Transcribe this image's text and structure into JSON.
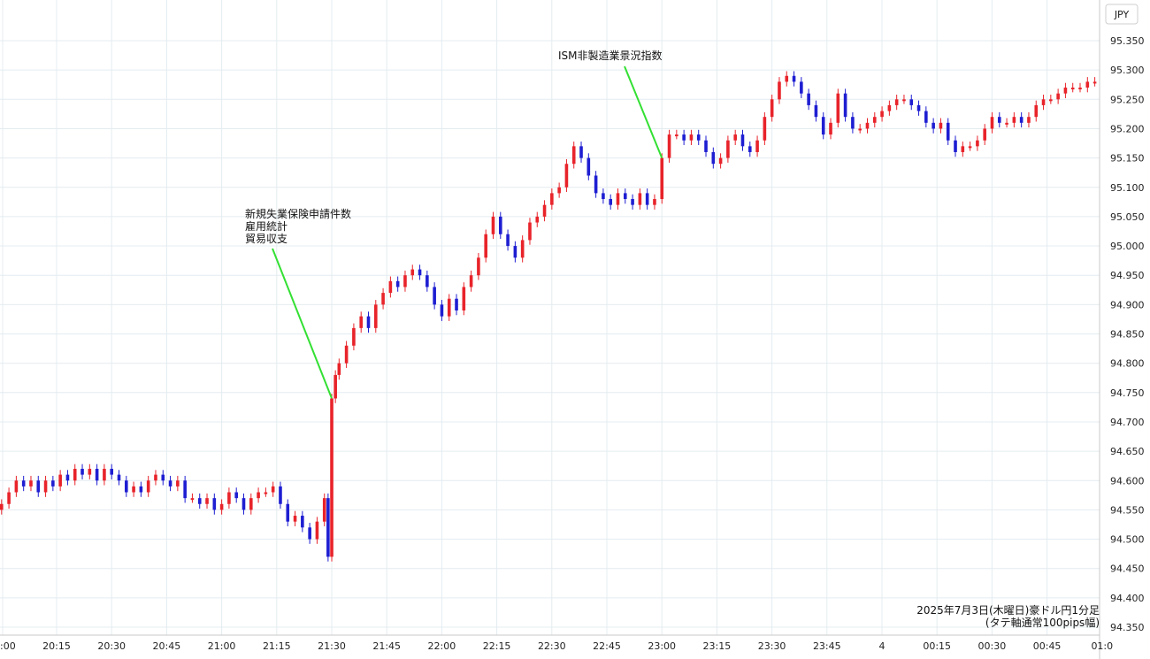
{
  "chart_data": {
    "type": "candlestick",
    "unit_label": "JPY",
    "ylim": [
      94.34,
      95.39
    ],
    "y_ticks": [
      94.35,
      94.4,
      94.45,
      94.5,
      94.55,
      94.6,
      94.65,
      94.7,
      94.75,
      94.8,
      94.85,
      94.9,
      94.95,
      95.0,
      95.05,
      95.1,
      95.15,
      95.2,
      95.25,
      95.3,
      95.35
    ],
    "x_tick_labels": [
      "20:15",
      "20:30",
      "20:45",
      "21:00",
      "21:15",
      "21:30",
      "21:45",
      "22:00",
      "22:15",
      "22:30",
      "22:45",
      "23:00",
      "23:15",
      "23:30",
      "23:45",
      "4",
      "00:15",
      "00:30",
      "00:45",
      "01:0"
    ],
    "left_edge_tick_label": ":00",
    "annotations": [
      {
        "lines": [
          "新規失業保険申請件数",
          "雇用統計",
          "貿易収支"
        ],
        "time": "21:30",
        "price": 94.74
      },
      {
        "lines": [
          "ISM非製造業景況指数"
        ],
        "time": "23:00",
        "price": 95.15
      }
    ],
    "caption": [
      "2025年7月3日(木曜日)豪ドル円1分足",
      "(タテ軸通常100pips幅)"
    ],
    "colors": {
      "up": "#e8232a",
      "down": "#1e1ed2",
      "annotation_line": "#33e033",
      "grid": "#e4ecf0",
      "axis": "#c8c8c8"
    },
    "series": [
      {
        "time": "20:00",
        "close": 94.56
      },
      {
        "time": "20:02",
        "close": 94.58
      },
      {
        "time": "20:04",
        "close": 94.6
      },
      {
        "time": "20:06",
        "close": 94.59
      },
      {
        "time": "20:08",
        "close": 94.6
      },
      {
        "time": "20:10",
        "close": 94.58
      },
      {
        "time": "20:12",
        "close": 94.6
      },
      {
        "time": "20:14",
        "close": 94.59
      },
      {
        "time": "20:16",
        "close": 94.61
      },
      {
        "time": "20:18",
        "close": 94.6
      },
      {
        "time": "20:20",
        "close": 94.62
      },
      {
        "time": "20:22",
        "close": 94.61
      },
      {
        "time": "20:24",
        "close": 94.62
      },
      {
        "time": "20:26",
        "close": 94.6
      },
      {
        "time": "20:28",
        "close": 94.62
      },
      {
        "time": "20:30",
        "close": 94.61
      },
      {
        "time": "20:32",
        "close": 94.6
      },
      {
        "time": "20:34",
        "close": 94.58
      },
      {
        "time": "20:36",
        "close": 94.59
      },
      {
        "time": "20:38",
        "close": 94.58
      },
      {
        "time": "20:40",
        "close": 94.6
      },
      {
        "time": "20:42",
        "close": 94.61
      },
      {
        "time": "20:44",
        "close": 94.6
      },
      {
        "time": "20:46",
        "close": 94.59
      },
      {
        "time": "20:48",
        "close": 94.6
      },
      {
        "time": "20:50",
        "close": 94.57
      },
      {
        "time": "20:52",
        "close": 94.57
      },
      {
        "time": "20:54",
        "close": 94.56
      },
      {
        "time": "20:56",
        "close": 94.57
      },
      {
        "time": "20:58",
        "close": 94.55
      },
      {
        "time": "21:00",
        "close": 94.56
      },
      {
        "time": "21:02",
        "close": 94.58
      },
      {
        "time": "21:04",
        "close": 94.57
      },
      {
        "time": "21:06",
        "close": 94.55
      },
      {
        "time": "21:08",
        "close": 94.57
      },
      {
        "time": "21:10",
        "close": 94.58
      },
      {
        "time": "21:12",
        "close": 94.58
      },
      {
        "time": "21:14",
        "close": 94.59
      },
      {
        "time": "21:16",
        "close": 94.56
      },
      {
        "time": "21:18",
        "close": 94.53
      },
      {
        "time": "21:20",
        "close": 94.54
      },
      {
        "time": "21:22",
        "close": 94.52
      },
      {
        "time": "21:24",
        "close": 94.5
      },
      {
        "time": "21:26",
        "close": 94.53
      },
      {
        "time": "21:28",
        "close": 94.57
      },
      {
        "time": "21:29",
        "close": 94.47
      },
      {
        "time": "21:30",
        "close": 94.74
      },
      {
        "time": "21:31",
        "close": 94.78
      },
      {
        "time": "21:32",
        "close": 94.8
      },
      {
        "time": "21:34",
        "close": 94.83
      },
      {
        "time": "21:36",
        "close": 94.86
      },
      {
        "time": "21:38",
        "close": 94.88
      },
      {
        "time": "21:40",
        "close": 94.86
      },
      {
        "time": "21:42",
        "close": 94.9
      },
      {
        "time": "21:44",
        "close": 94.92
      },
      {
        "time": "21:46",
        "close": 94.94
      },
      {
        "time": "21:48",
        "close": 94.93
      },
      {
        "time": "21:50",
        "close": 94.95
      },
      {
        "time": "21:52",
        "close": 94.96
      },
      {
        "time": "21:54",
        "close": 94.95
      },
      {
        "time": "21:56",
        "close": 94.93
      },
      {
        "time": "21:58",
        "close": 94.9
      },
      {
        "time": "22:00",
        "close": 94.88
      },
      {
        "time": "22:02",
        "close": 94.91
      },
      {
        "time": "22:04",
        "close": 94.89
      },
      {
        "time": "22:06",
        "close": 94.93
      },
      {
        "time": "22:08",
        "close": 94.95
      },
      {
        "time": "22:10",
        "close": 94.98
      },
      {
        "time": "22:12",
        "close": 95.02
      },
      {
        "time": "22:14",
        "close": 95.05
      },
      {
        "time": "22:16",
        "close": 95.02
      },
      {
        "time": "22:18",
        "close": 95.0
      },
      {
        "time": "22:20",
        "close": 94.98
      },
      {
        "time": "22:22",
        "close": 95.01
      },
      {
        "time": "22:24",
        "close": 95.04
      },
      {
        "time": "22:26",
        "close": 95.05
      },
      {
        "time": "22:28",
        "close": 95.07
      },
      {
        "time": "22:30",
        "close": 95.09
      },
      {
        "time": "22:32",
        "close": 95.1
      },
      {
        "time": "22:34",
        "close": 95.14
      },
      {
        "time": "22:36",
        "close": 95.17
      },
      {
        "time": "22:38",
        "close": 95.15
      },
      {
        "time": "22:40",
        "close": 95.12
      },
      {
        "time": "22:42",
        "close": 95.09
      },
      {
        "time": "22:44",
        "close": 95.08
      },
      {
        "time": "22:46",
        "close": 95.07
      },
      {
        "time": "22:48",
        "close": 95.09
      },
      {
        "time": "22:50",
        "close": 95.08
      },
      {
        "time": "22:52",
        "close": 95.07
      },
      {
        "time": "22:54",
        "close": 95.09
      },
      {
        "time": "22:56",
        "close": 95.07
      },
      {
        "time": "22:58",
        "close": 95.08
      },
      {
        "time": "23:00",
        "close": 95.15
      },
      {
        "time": "23:02",
        "close": 95.19
      },
      {
        "time": "23:04",
        "close": 95.19
      },
      {
        "time": "23:06",
        "close": 95.18
      },
      {
        "time": "23:08",
        "close": 95.19
      },
      {
        "time": "23:10",
        "close": 95.18
      },
      {
        "time": "23:12",
        "close": 95.16
      },
      {
        "time": "23:14",
        "close": 95.14
      },
      {
        "time": "23:16",
        "close": 95.15
      },
      {
        "time": "23:18",
        "close": 95.18
      },
      {
        "time": "23:20",
        "close": 95.19
      },
      {
        "time": "23:22",
        "close": 95.17
      },
      {
        "time": "23:24",
        "close": 95.16
      },
      {
        "time": "23:26",
        "close": 95.18
      },
      {
        "time": "23:28",
        "close": 95.22
      },
      {
        "time": "23:30",
        "close": 95.25
      },
      {
        "time": "23:32",
        "close": 95.28
      },
      {
        "time": "23:34",
        "close": 95.29
      },
      {
        "time": "23:36",
        "close": 95.28
      },
      {
        "time": "23:38",
        "close": 95.26
      },
      {
        "time": "23:40",
        "close": 95.24
      },
      {
        "time": "23:42",
        "close": 95.22
      },
      {
        "time": "23:44",
        "close": 95.19
      },
      {
        "time": "23:46",
        "close": 95.21
      },
      {
        "time": "23:48",
        "close": 95.26
      },
      {
        "time": "23:50",
        "close": 95.22
      },
      {
        "time": "23:52",
        "close": 95.2
      },
      {
        "time": "23:54",
        "close": 95.2
      },
      {
        "time": "23:56",
        "close": 95.21
      },
      {
        "time": "23:58",
        "close": 95.22
      },
      {
        "time": "00:00",
        "close": 95.23
      },
      {
        "time": "00:02",
        "close": 95.24
      },
      {
        "time": "00:04",
        "close": 95.25
      },
      {
        "time": "00:06",
        "close": 95.25
      },
      {
        "time": "00:08",
        "close": 95.24
      },
      {
        "time": "00:10",
        "close": 95.23
      },
      {
        "time": "00:12",
        "close": 95.21
      },
      {
        "time": "00:14",
        "close": 95.2
      },
      {
        "time": "00:16",
        "close": 95.21
      },
      {
        "time": "00:18",
        "close": 95.18
      },
      {
        "time": "00:20",
        "close": 95.16
      },
      {
        "time": "00:22",
        "close": 95.17
      },
      {
        "time": "00:24",
        "close": 95.17
      },
      {
        "time": "00:26",
        "close": 95.18
      },
      {
        "time": "00:28",
        "close": 95.2
      },
      {
        "time": "00:30",
        "close": 95.22
      },
      {
        "time": "00:32",
        "close": 95.21
      },
      {
        "time": "00:34",
        "close": 95.21
      },
      {
        "time": "00:36",
        "close": 95.22
      },
      {
        "time": "00:38",
        "close": 95.21
      },
      {
        "time": "00:40",
        "close": 95.22
      },
      {
        "time": "00:42",
        "close": 95.24
      },
      {
        "time": "00:44",
        "close": 95.25
      },
      {
        "time": "00:46",
        "close": 95.25
      },
      {
        "time": "00:48",
        "close": 95.26
      },
      {
        "time": "00:50",
        "close": 95.27
      },
      {
        "time": "00:52",
        "close": 95.27
      },
      {
        "time": "00:54",
        "close": 95.27
      },
      {
        "time": "00:56",
        "close": 95.28
      },
      {
        "time": "00:58",
        "close": 95.28
      }
    ]
  }
}
